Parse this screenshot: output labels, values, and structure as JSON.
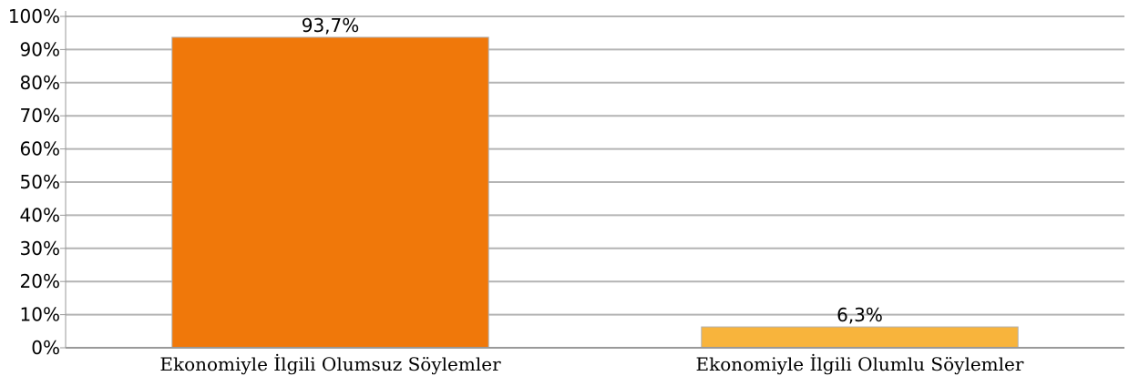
{
  "chart_data": {
    "type": "bar",
    "title": "",
    "xlabel": "",
    "ylabel": "",
    "categories": [
      "Ekonomiyle İlgili Olumsuz Söylemler",
      "Ekonomiyle İlgili Olumlu Söylemler"
    ],
    "values": [
      93.7,
      6.3
    ],
    "data_labels": [
      "93,7%",
      "6,3%"
    ],
    "bar_colors": [
      "#f0780a",
      "#f8b43c"
    ],
    "ylim": [
      0,
      100
    ],
    "yticks": [
      0,
      10,
      20,
      30,
      40,
      50,
      60,
      70,
      80,
      90,
      100
    ],
    "ytick_labels": [
      "0%",
      "10%",
      "20%",
      "30%",
      "40%",
      "50%",
      "60%",
      "70%",
      "80%",
      "90%",
      "100%"
    ],
    "grid": true,
    "grid_color": "#b4b4b4",
    "legend": "none"
  }
}
